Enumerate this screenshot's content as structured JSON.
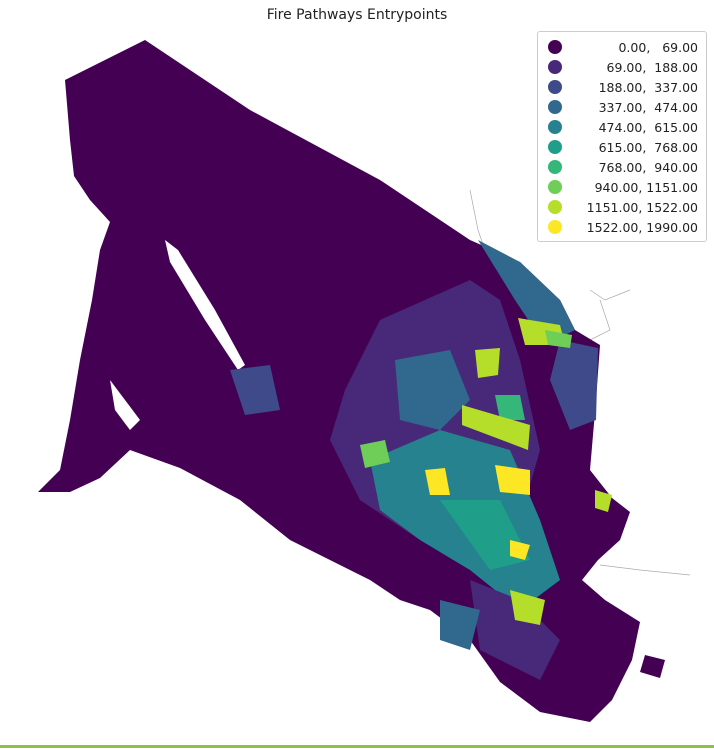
{
  "title": "Fire Pathways Entrypoints",
  "legend": {
    "items": [
      {
        "label": "0.00,   69.00",
        "color": "#440154"
      },
      {
        "label": "69.00,  188.00",
        "color": "#482878"
      },
      {
        "label": "188.00,  337.00",
        "color": "#3e4a89"
      },
      {
        "label": "337.00,  474.00",
        "color": "#31688e"
      },
      {
        "label": "474.00,  615.00",
        "color": "#26828e"
      },
      {
        "label": "615.00,  768.00",
        "color": "#1f9e89"
      },
      {
        "label": "768.00,  940.00",
        "color": "#35b779"
      },
      {
        "label": "940.00, 1151.00",
        "color": "#6ece58"
      },
      {
        "label": "1151.00, 1522.00",
        "color": "#b5de2b"
      },
      {
        "label": "1522.00, 1990.00",
        "color": "#fde725"
      }
    ]
  },
  "map": {
    "type": "choropleth",
    "scheme": "viridis",
    "legend_position": "top-right"
  }
}
